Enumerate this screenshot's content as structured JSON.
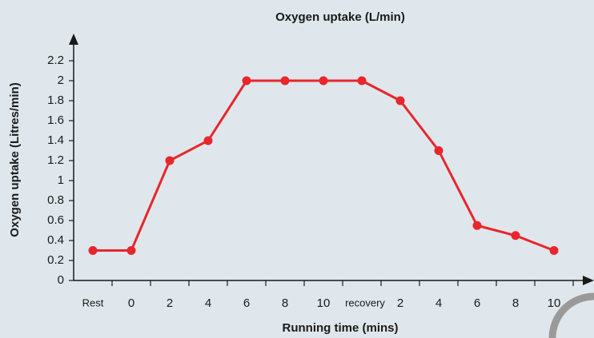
{
  "chart_data": {
    "type": "line",
    "title": "Oxygen uptake (L/min)",
    "x_label": "Running time (mins)",
    "y_label": "Oxygen uptake (Litres/min)",
    "categories": [
      "Rest",
      "0",
      "2",
      "4",
      "6",
      "8",
      "10",
      "recovery",
      "2",
      "4",
      "6",
      "8",
      "10"
    ],
    "series": [
      {
        "name": "Oxygen uptake",
        "color": "#e8262b",
        "values": [
          0.3,
          0.3,
          1.2,
          1.4,
          2,
          2,
          2,
          2,
          1.8,
          1.3,
          0.55,
          0.45,
          0.3
        ]
      }
    ],
    "ylim": [
      0,
      2.2
    ],
    "yticks": [
      0,
      0.2,
      0.4,
      0.6,
      0.8,
      1,
      1.2,
      1.4,
      1.6,
      1.8,
      2,
      2.2
    ]
  }
}
